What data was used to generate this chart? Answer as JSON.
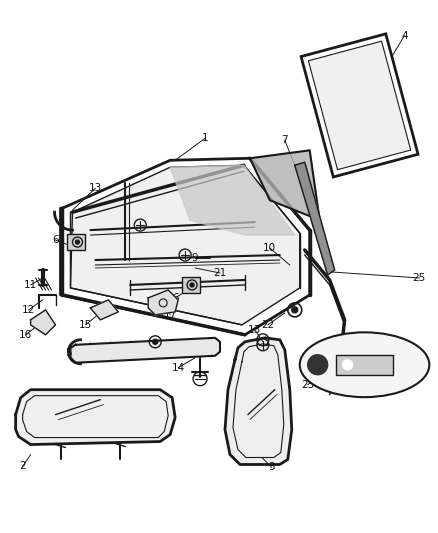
{
  "bg_color": "#ffffff",
  "fig_width": 4.38,
  "fig_height": 5.33,
  "dpi": 100,
  "line_color": "#1a1a1a",
  "label_color": "#111111",
  "label_fontsize": 7.0
}
